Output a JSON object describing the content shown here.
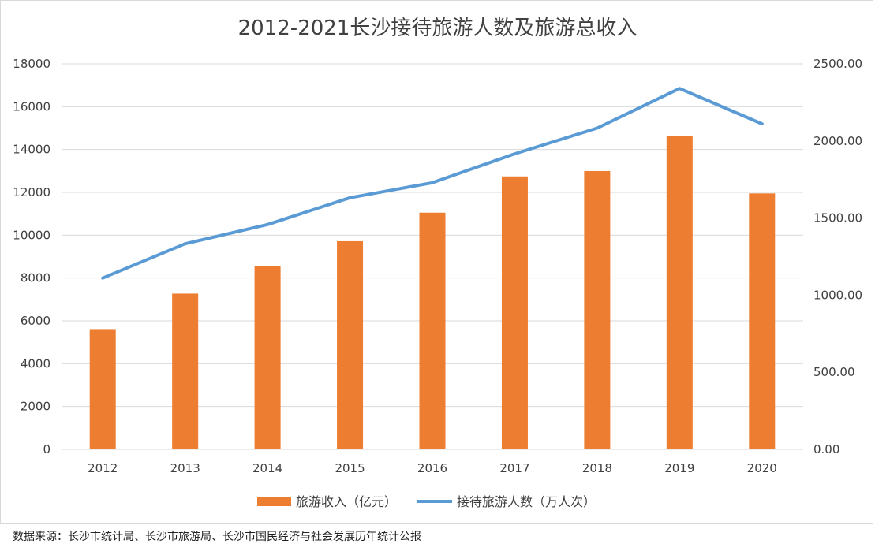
{
  "colors": {
    "bar": "#ED7D31",
    "line": "#5B9BD5",
    "grid": "#D9D9D9",
    "text": "#404040"
  },
  "chart_data": {
    "type": "bar+line",
    "title": "2012-2021长沙接待旅游人数及旅游总收入",
    "categories": [
      "2012",
      "2013",
      "2014",
      "2015",
      "2016",
      "2017",
      "2018",
      "2019",
      "2020"
    ],
    "series": [
      {
        "name": "旅游收入（亿元）",
        "type": "bar",
        "axis": "right",
        "values": [
          780,
          1010,
          1190,
          1350,
          1535,
          1770,
          1805,
          2030,
          1660
        ]
      },
      {
        "name": "接待旅游人数（万人次）",
        "type": "line",
        "axis": "left",
        "values": [
          8000,
          9600,
          10500,
          11750,
          12450,
          13800,
          15000,
          16850,
          15200
        ]
      }
    ],
    "left_axis": {
      "ylim": [
        0,
        18000
      ],
      "ticks": [
        "0",
        "2000",
        "4000",
        "6000",
        "8000",
        "10000",
        "12000",
        "14000",
        "16000",
        "18000"
      ]
    },
    "right_axis": {
      "ylim": [
        0,
        2500
      ],
      "ticks": [
        "0.00",
        "500.00",
        "1000.00",
        "1500.00",
        "2000.00",
        "2500.00"
      ]
    },
    "legend_position": "bottom",
    "grid": true
  },
  "source_note": "数据来源：长沙市统计局、长沙市旅游局、长沙市国民经济与社会发展历年统计公报"
}
